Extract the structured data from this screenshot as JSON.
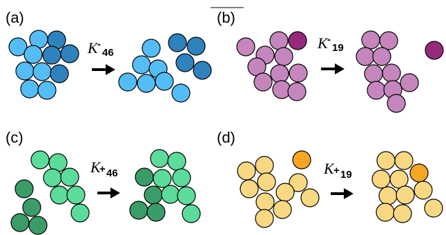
{
  "colors": {
    "blue_light": "#55bdf5",
    "blue_dark": "#2e82bd",
    "purple_light": "#c586bd",
    "purple_dark": "#952a7c",
    "green_light": "#5cdc9a",
    "green_dark": "#3a9d68",
    "yellow_light": "#f8d882",
    "yellow_dark": "#f5a623",
    "stroke": "#000000"
  },
  "panels": [
    {
      "label": "(a)",
      "symbol": "K",
      "sign": "-",
      "index": "46"
    },
    {
      "label": "(b)",
      "symbol": "K",
      "sign": "-",
      "index": "19"
    },
    {
      "label": "(c)",
      "symbol": "K",
      "sign": "+",
      "index": "46"
    },
    {
      "label": "(d)",
      "symbol": "K",
      "sign": "+",
      "index": "19"
    }
  ]
}
